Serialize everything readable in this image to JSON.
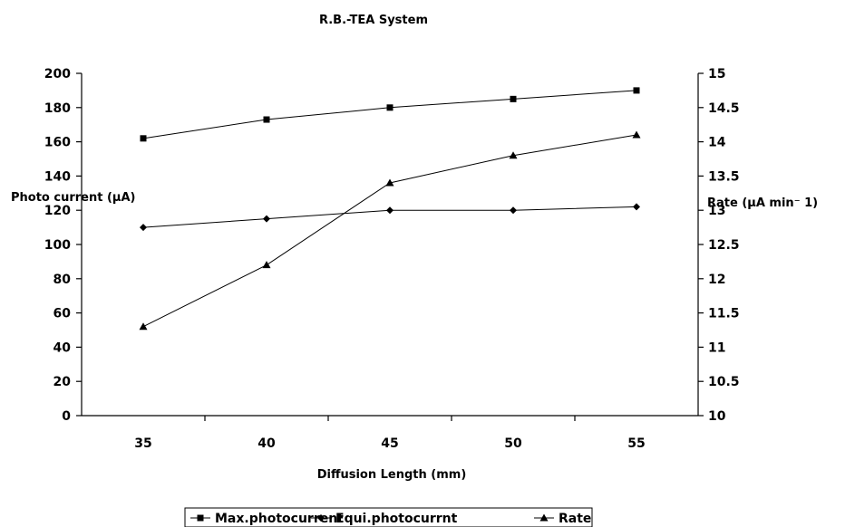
{
  "chart_data": {
    "type": "line",
    "title": "R.B.-TEA System",
    "xlabel": "Diffusion Length (mm)",
    "ylabel_left": "Photo current (µA)",
    "ylabel_right": "Rate (µA min⁻ 1)",
    "categories": [
      "35",
      "40",
      "45",
      "50",
      "55"
    ],
    "ylim_left": [
      0,
      200
    ],
    "ylim_right": [
      10,
      15
    ],
    "yticks_left": [
      "0",
      "20",
      "40",
      "60",
      "80",
      "100",
      "120",
      "140",
      "160",
      "180",
      "200"
    ],
    "yticks_right": [
      "10",
      "10.5",
      "11",
      "11.5",
      "12",
      "12.5",
      "13",
      "13.5",
      "14",
      "14.5",
      "15"
    ],
    "grid": false,
    "legend": "bottom",
    "series": [
      {
        "name": "Max.photocurrent",
        "axis": "left",
        "marker": "square",
        "values": [
          162,
          173,
          180,
          185,
          190
        ]
      },
      {
        "name": "Equi.photocurrnt",
        "axis": "left",
        "marker": "diamond",
        "values": [
          110,
          115,
          120,
          120,
          122
        ]
      },
      {
        "name": "Rate",
        "axis": "right",
        "marker": "triangle",
        "values": [
          11.3,
          12.2,
          13.4,
          13.8,
          14.1
        ]
      }
    ]
  }
}
